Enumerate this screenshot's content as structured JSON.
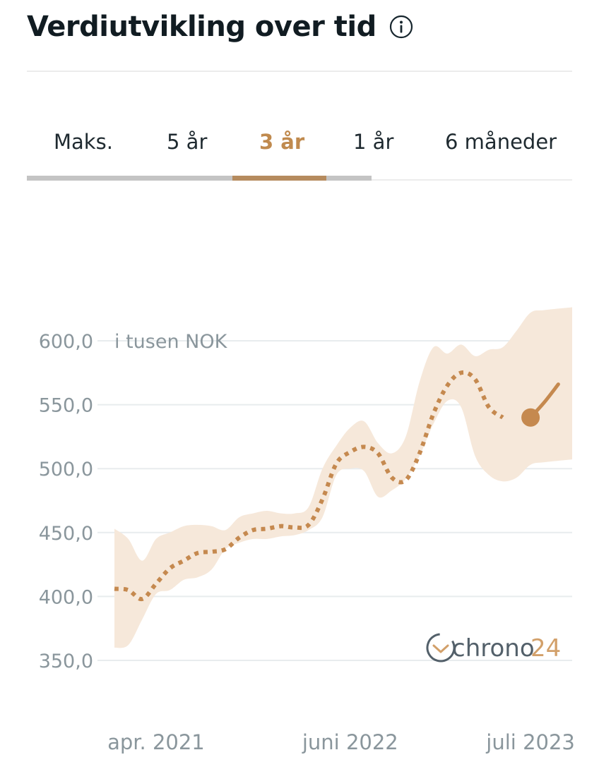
{
  "header": {
    "title": "Verdiutvikling over tid",
    "info_icon": "info-circle-icon"
  },
  "tabs": [
    {
      "label": "Maks.",
      "active": false
    },
    {
      "label": "5 år",
      "active": false
    },
    {
      "label": "3 år",
      "active": true
    },
    {
      "label": "1 år",
      "active": false
    },
    {
      "label": "6 måneder",
      "active": false
    }
  ],
  "colors": {
    "accent": "#c08a4e",
    "band": "#f6e8da",
    "line": "#c5894f",
    "grid": "#e8ecee",
    "axis_text": "#8a969c"
  },
  "chart_data": {
    "type": "line",
    "title": "",
    "unit_label": "i tusen NOK",
    "ylim": [
      335,
      620
    ],
    "yticks": [
      600,
      550,
      500,
      450,
      400,
      350
    ],
    "ytick_labels": [
      "600,0",
      "550,0",
      "500,0",
      "450,0",
      "400,0",
      "350,0"
    ],
    "x_tick_labels": [
      "apr. 2021",
      "juni 2022",
      "juli 2023"
    ],
    "x_tick_positions": [
      "2021-04",
      "2022-06",
      "2023-07"
    ],
    "xlim": [
      "2021-01",
      "2023-10"
    ],
    "grid": true,
    "series": [
      {
        "style": "dotted",
        "x": [
          "2021-01",
          "2021-02",
          "2021-03",
          "2021-04",
          "2021-05",
          "2021-06",
          "2021-07",
          "2021-08",
          "2021-09",
          "2021-10",
          "2021-11",
          "2021-12",
          "2022-01",
          "2022-02",
          "2022-03",
          "2022-04",
          "2022-05",
          "2022-06",
          "2022-07",
          "2022-08",
          "2022-09",
          "2022-10",
          "2022-11",
          "2022-12",
          "2023-01",
          "2023-02",
          "2023-03",
          "2023-04",
          "2023-05",
          "2023-06",
          "2023-07",
          "2023-08"
        ],
        "values": [
          406,
          405,
          398,
          410,
          422,
          428,
          434,
          435,
          437,
          446,
          452,
          453,
          455,
          454,
          456,
          476,
          504,
          513,
          517,
          512,
          493,
          491,
          512,
          543,
          565,
          575,
          570,
          548,
          540,
          541,
          560,
          566
        ],
        "upper": [
          453,
          445,
          428,
          445,
          450,
          455,
          456,
          455,
          452,
          462,
          465,
          467,
          465,
          465,
          470,
          500,
          518,
          532,
          537,
          520,
          512,
          525,
          568,
          595,
          590,
          597,
          588,
          593,
          595,
          608,
          622,
          624
        ],
        "lower": [
          360,
          362,
          382,
          402,
          405,
          413,
          415,
          421,
          437,
          442,
          445,
          445,
          447,
          448,
          452,
          462,
          495,
          500,
          498,
          478,
          483,
          492,
          510,
          535,
          553,
          548,
          510,
          495,
          490,
          493,
          503,
          505
        ]
      },
      {
        "style": "solid",
        "x": [
          "2023-07",
          "2023-08",
          "2023-09"
        ],
        "values": [
          540,
          552,
          566
        ]
      }
    ],
    "current_point": {
      "x": "2023-07",
      "value": 540
    }
  },
  "logo": {
    "text_a": "chrono",
    "text_b": "24"
  }
}
